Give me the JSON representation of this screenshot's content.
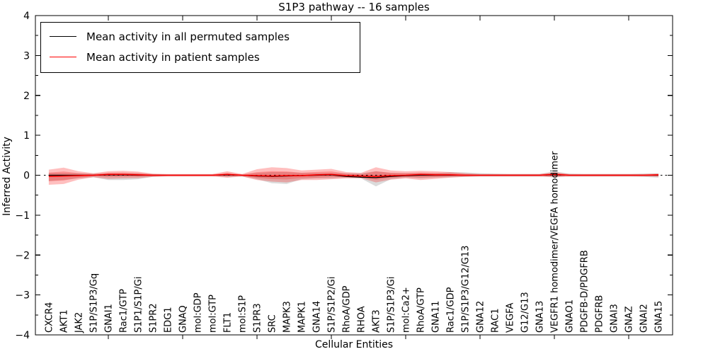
{
  "figure": {
    "title": "S1P3 pathway -- 16 samples",
    "xlabel": "Cellular Entities",
    "ylabel": "Inferred Activity"
  },
  "legend": {
    "entries": [
      {
        "label": "Mean activity in all permuted samples",
        "color": "#000000"
      },
      {
        "label": "Mean activity in patient samples",
        "color": "#ff0000"
      }
    ],
    "position": "upper left"
  },
  "chart_data": {
    "type": "line",
    "title": "S1P3 pathway -- 16 samples",
    "xlabel": "Cellular Entities",
    "ylabel": "Inferred Activity",
    "ylim": [
      -4,
      4
    ],
    "xlim": [
      0.1,
      42.95
    ],
    "grid": false,
    "zero_reference_line": 0,
    "y_ticks": [
      4,
      3,
      2,
      1,
      0,
      -1,
      -2,
      -3,
      -4
    ],
    "y_tick_labels": [
      "4",
      "3",
      "2",
      "1",
      "0",
      "−1",
      "−2",
      "−3",
      "−4"
    ],
    "y_minor_ticks": [
      3.5,
      2.5,
      1.5,
      0.5,
      -0.5,
      -1.5,
      -2.5,
      -3.5
    ],
    "x_major_ticks": [
      5,
      10,
      15,
      20,
      25,
      30,
      35,
      40
    ],
    "categories": [
      "CXCR4",
      "AKT1",
      "JAK2",
      "S1P/S1P3/Gq",
      "GNAI1",
      "Rac1/GTP",
      "S1P1/S1P/Gi",
      "S1PR2",
      "EDG1",
      "GNAQ",
      "mol:GDP",
      "mol:GTP",
      "FLT1",
      "mol:S1P",
      "S1PR3",
      "SRC",
      "MAPK3",
      "MAPK1",
      "GNA14",
      "S1P/S1P2/Gi",
      "RhoA/GDP",
      "RHOA",
      "AKT3",
      "S1P/S1P3/Gi",
      "mol:Ca2+",
      "RhoA/GTP",
      "GNA11",
      "Rac1/GDP",
      "S1P/S1P3/G12/G13",
      "GNA12",
      "RAC1",
      "VEGFA",
      "G12/G13",
      "GNA13",
      "VEGFR1 homodimer/VEGFA homodimer",
      "GNAO1",
      "PDGFB-D/PDGFRB",
      "PDGFRB",
      "GNAI3",
      "GNAZ",
      "GNAI2",
      "GNA15"
    ],
    "series": [
      {
        "name": "Mean activity in all permuted samples",
        "color": "#000000",
        "values": [
          0,
          0,
          0,
          0,
          0.01,
          0.01,
          0,
          0,
          0,
          0,
          0,
          0,
          0.01,
          0,
          -0.02,
          -0.03,
          -0.02,
          -0.01,
          0,
          0.01,
          -0.03,
          -0.05,
          -0.06,
          -0.03,
          -0.01,
          0,
          0,
          0,
          0,
          0,
          0,
          0,
          0,
          0,
          0.01,
          0,
          0,
          0,
          0,
          0,
          0,
          0
        ]
      },
      {
        "name": "Mean activity in patient samples",
        "color": "#ff0000",
        "values": [
          -0.03,
          -0.02,
          -0.01,
          0,
          0.02,
          0.02,
          0.01,
          0,
          0,
          0,
          0,
          0,
          0.02,
          0,
          -0.01,
          -0.02,
          -0.01,
          -0.01,
          0.01,
          0.02,
          -0.01,
          -0.02,
          -0.03,
          -0.01,
          0,
          0.02,
          0.01,
          0.01,
          0,
          0,
          0,
          0,
          0,
          0,
          0.02,
          0,
          0,
          0,
          0,
          0,
          0,
          0.01
        ]
      }
    ],
    "bands": [
      {
        "name": "permuted-std-band",
        "color": "#000000",
        "opacity": 0.14,
        "upper": [
          0.06,
          0.06,
          0.05,
          0.04,
          0.05,
          0.05,
          0.05,
          0.03,
          0.02,
          0.02,
          0.02,
          0.02,
          0.04,
          0.02,
          0.06,
          0.08,
          0.08,
          0.06,
          0.06,
          0.06,
          0.05,
          0.05,
          0.1,
          0.06,
          0.05,
          0.05,
          0.05,
          0.08,
          0.07,
          0.05,
          0.04,
          0.03,
          0.03,
          0.03,
          0.09,
          0.04,
          0.03,
          0.03,
          0.03,
          0.03,
          0.04,
          0.05
        ],
        "lower": [
          -0.15,
          -0.12,
          -0.08,
          -0.05,
          -0.12,
          -0.12,
          -0.1,
          -0.04,
          -0.02,
          -0.02,
          -0.02,
          -0.02,
          -0.05,
          -0.03,
          -0.1,
          -0.2,
          -0.22,
          -0.1,
          -0.08,
          -0.08,
          -0.06,
          -0.08,
          -0.28,
          -0.1,
          -0.06,
          -0.08,
          -0.06,
          -0.05,
          -0.04,
          -0.03,
          -0.03,
          -0.03,
          -0.03,
          -0.03,
          -0.05,
          -0.03,
          -0.03,
          -0.03,
          -0.03,
          -0.03,
          -0.04,
          -0.06
        ]
      },
      {
        "name": "patient-std-band",
        "color": "#ff0000",
        "opacity": 0.25,
        "upper": [
          0.14,
          0.19,
          0.1,
          0.05,
          0.1,
          0.11,
          0.09,
          0.04,
          0.03,
          0.03,
          0.03,
          0.03,
          0.1,
          0.03,
          0.15,
          0.2,
          0.18,
          0.12,
          0.14,
          0.16,
          0.08,
          0.06,
          0.2,
          0.12,
          0.1,
          0.11,
          0.1,
          0.08,
          0.05,
          0.03,
          0.03,
          0.03,
          0.03,
          0.03,
          0.08,
          0.03,
          0.03,
          0.03,
          0.03,
          0.03,
          0.03,
          0.04
        ],
        "lower": [
          -0.24,
          -0.22,
          -0.11,
          -0.05,
          -0.09,
          -0.08,
          -0.07,
          -0.04,
          -0.03,
          -0.03,
          -0.03,
          -0.03,
          -0.06,
          -0.03,
          -0.12,
          -0.16,
          -0.18,
          -0.12,
          -0.12,
          -0.1,
          -0.08,
          -0.07,
          -0.18,
          -0.11,
          -0.08,
          -0.12,
          -0.09,
          -0.06,
          -0.04,
          -0.03,
          -0.03,
          -0.03,
          -0.03,
          -0.03,
          -0.05,
          -0.03,
          -0.03,
          -0.03,
          -0.03,
          -0.03,
          -0.03,
          -0.04
        ]
      }
    ],
    "inner_band_scale": 0.55,
    "legend_position": "upper left"
  }
}
